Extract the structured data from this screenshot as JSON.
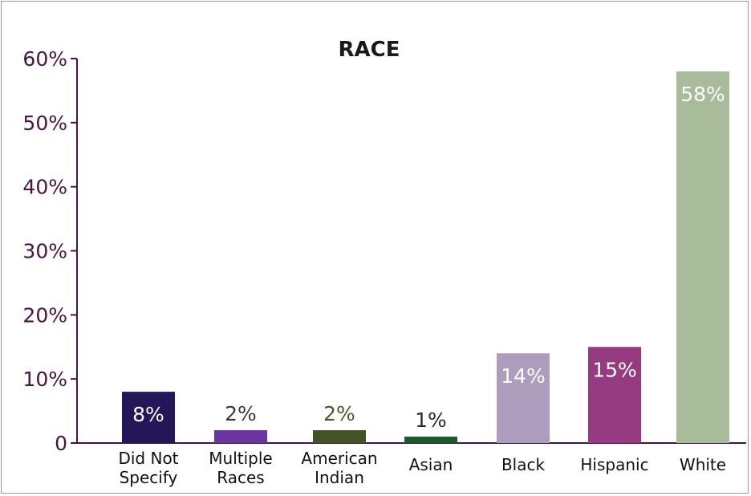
{
  "chart_data": {
    "type": "bar",
    "title": "RACE",
    "xlabel": "",
    "ylabel": "",
    "categories": [
      [
        "Did Not",
        "Specify"
      ],
      [
        "Multiple",
        "Races"
      ],
      [
        "American",
        "Indian"
      ],
      [
        "Asian"
      ],
      [
        "Black"
      ],
      [
        "Hispanic"
      ],
      [
        "White"
      ]
    ],
    "values": [
      8,
      2,
      2,
      1,
      14,
      15,
      58
    ],
    "data_labels": [
      "8%",
      "2%",
      "2%",
      "1%",
      "14%",
      "15%",
      "58%"
    ],
    "label_position": [
      "inside",
      "above",
      "above",
      "above",
      "inside",
      "inside",
      "inside"
    ],
    "colors": [
      "#241658",
      "#6a35a0",
      "#435227",
      "#1b5a2d",
      "#ae9cbc",
      "#963b82",
      "#a8bb9a"
    ],
    "label_colors": [
      "#ffffff",
      "#3a3a3a",
      "#4a5a2a",
      "#2a2a2a",
      "#ffffff",
      "#ffffff",
      "#ffffff"
    ],
    "ylim": [
      0,
      60
    ],
    "yticks": [
      0,
      10,
      20,
      30,
      40,
      50,
      60
    ],
    "ytick_labels": [
      "0",
      "10%",
      "20%",
      "30%",
      "40%",
      "50%",
      "60%"
    ],
    "grid": false,
    "legend": "none",
    "axis_color": "#4a1442"
  }
}
